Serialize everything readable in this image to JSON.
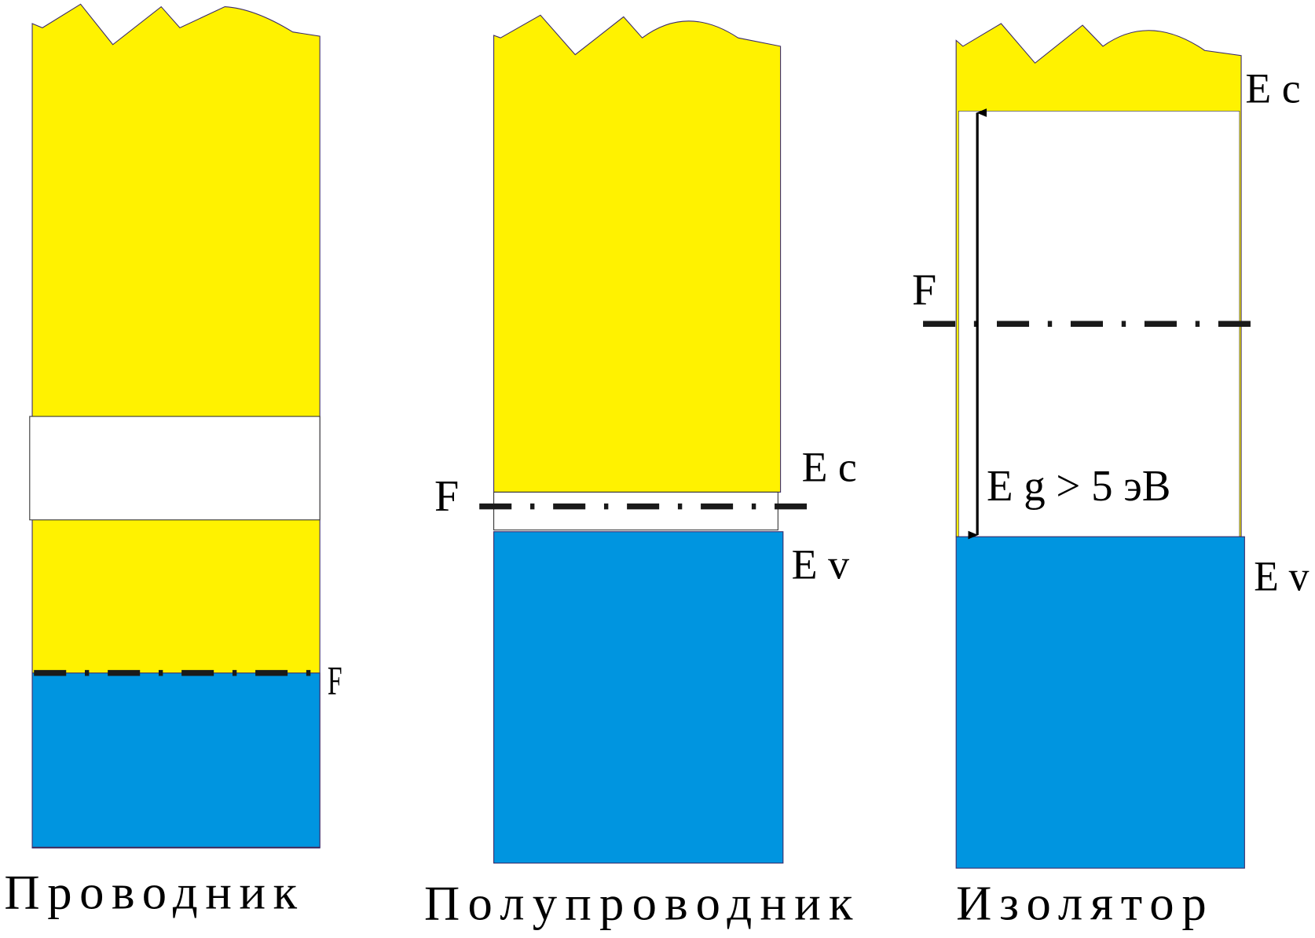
{
  "colors": {
    "conduction_band": "#FFF200",
    "valence_band": "#0095E0",
    "gap": "#FFFFFF",
    "fermi_line": "#1A1A1A"
  },
  "conductor": {
    "title": "Проводник",
    "fermi_label": "F"
  },
  "semiconductor": {
    "title": "Полупроводник",
    "fermi_label": "F",
    "ec_label": "E c",
    "ev_label": "E v"
  },
  "insulator": {
    "title": "Изолятор",
    "fermi_label": "F",
    "ec_label": "E c",
    "ev_label": "E v",
    "gap_label": "E g > 5 эВ"
  }
}
